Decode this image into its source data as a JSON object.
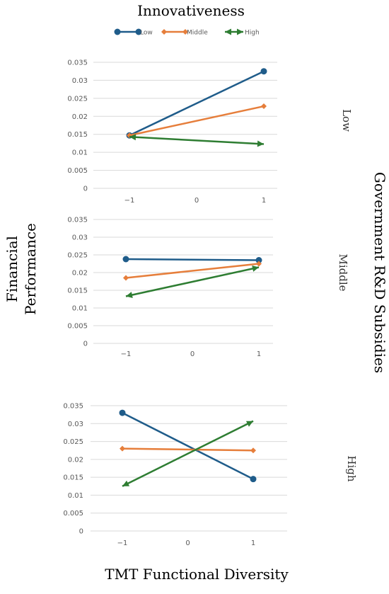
{
  "figure": {
    "top_title": "Innovativeness",
    "y_title_line1": "Financial",
    "y_title_line2": "Performance",
    "right_title": "Government R&D Subsidies",
    "x_title": "TMT Functional Diversity"
  },
  "legend": [
    {
      "name": "Low",
      "color": "#1f5c8a",
      "marker": "circle"
    },
    {
      "name": "Middle",
      "color": "#e67e3b",
      "marker": "diamond"
    },
    {
      "name": "High",
      "color": "#2e7d32",
      "marker": "arrow"
    }
  ],
  "chart_data": [
    {
      "type": "line",
      "panel_label": "Low",
      "x": [
        -1,
        1
      ],
      "x_ticks": [
        "−1",
        "0",
        "1"
      ],
      "y_ticks": [
        "0",
        "0.005",
        "0.01",
        "0.015",
        "0.02",
        "0.025",
        "0.03",
        "0.035"
      ],
      "ylim": [
        0,
        0.035
      ],
      "grid": true,
      "series": [
        {
          "name": "Low",
          "values": [
            0.0147,
            0.0325
          ]
        },
        {
          "name": "Middle",
          "values": [
            0.0147,
            0.0228
          ]
        },
        {
          "name": "High",
          "values": [
            0.0143,
            0.0123
          ]
        }
      ]
    },
    {
      "type": "line",
      "panel_label": "Middle",
      "x": [
        -1,
        1
      ],
      "x_ticks": [
        "−1",
        "0",
        "1"
      ],
      "y_ticks": [
        "0",
        "0.005",
        "0.01",
        "0.015",
        "0.02",
        "0.025",
        "0.03",
        "0.035"
      ],
      "ylim": [
        0,
        0.035
      ],
      "grid": true,
      "series": [
        {
          "name": "Low",
          "values": [
            0.0238,
            0.0235
          ]
        },
        {
          "name": "Middle",
          "values": [
            0.0185,
            0.0225
          ]
        },
        {
          "name": "High",
          "values": [
            0.0133,
            0.0215
          ]
        }
      ]
    },
    {
      "type": "line",
      "panel_label": "High",
      "x": [
        -1,
        1
      ],
      "x_ticks": [
        "−1",
        "0",
        "1"
      ],
      "y_ticks": [
        "0",
        "0.005",
        "0.01",
        "0.015",
        "0.02",
        "0.025",
        "0.03",
        "0.035"
      ],
      "ylim": [
        0,
        0.035
      ],
      "grid": true,
      "series": [
        {
          "name": "Low",
          "values": [
            0.033,
            0.0145
          ]
        },
        {
          "name": "Middle",
          "values": [
            0.023,
            0.0225
          ]
        },
        {
          "name": "High",
          "values": [
            0.0125,
            0.0307
          ]
        }
      ]
    }
  ]
}
